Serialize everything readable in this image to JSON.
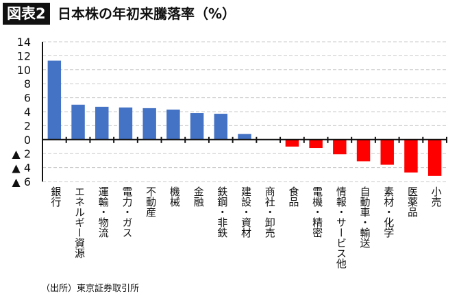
{
  "header": {
    "badge": "図表2",
    "title": "日本株の年初来騰落率（%）"
  },
  "source": "（出所）東京証券取引所",
  "chart_data": {
    "type": "bar",
    "title": "日本株の年初来騰落率（%）",
    "categories": [
      "銀行",
      "エネルギー資源",
      "運輸・物流",
      "電力・ガス",
      "不動産",
      "機械",
      "金融",
      "鉄鋼・非鉄",
      "建設・資材",
      "商社・卸売",
      "食品",
      "電機・精密",
      "情報・サービス他",
      "自動車・輸送",
      "素材・化学",
      "医薬品",
      "小売"
    ],
    "values": [
      11.3,
      5.0,
      4.7,
      4.6,
      4.5,
      4.3,
      3.8,
      3.7,
      0.8,
      0.0,
      -1.0,
      -1.2,
      -2.1,
      -3.1,
      -3.6,
      -4.7,
      -5.2
    ],
    "ylim": [
      -6,
      14
    ],
    "yticks": [
      14,
      12,
      10,
      8,
      6,
      4,
      2,
      0,
      -2,
      -4,
      -6
    ],
    "ytick_labels": [
      "14",
      "12",
      "10",
      "8",
      "6",
      "4",
      "2",
      "0",
      "▲ 2",
      "▲ 4",
      "▲ 6"
    ],
    "grid": true,
    "colors": {
      "positive": "#4472C4",
      "negative": "#FF0000"
    }
  }
}
